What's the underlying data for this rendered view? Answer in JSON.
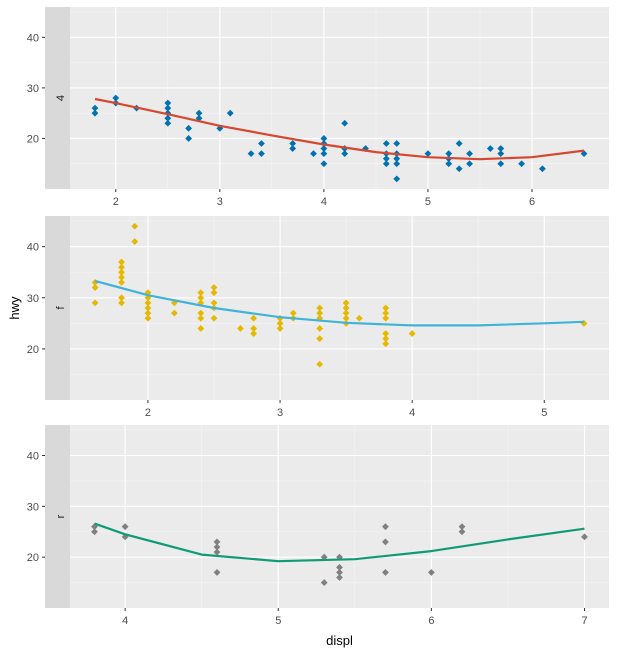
{
  "chart_data": {
    "type": "scatter",
    "xlabel": "displ",
    "ylabel": "hwy",
    "grid": true,
    "legend": "none",
    "panel_background": "#ebebeb",
    "strip_background": "#d9d9d9",
    "y_ticks": [
      20,
      30,
      40
    ],
    "ylim": [
      10,
      46
    ],
    "panels": [
      {
        "strip": "4",
        "xlim": [
          1.56,
          6.74
        ],
        "x_ticks": [
          2,
          3,
          4,
          5,
          6
        ],
        "point_color": "#0072b2",
        "smooth_color": "#d7472f",
        "points": [
          [
            1.8,
            25
          ],
          [
            1.8,
            26
          ],
          [
            2,
            28
          ],
          [
            2,
            27
          ],
          [
            2.2,
            26
          ],
          [
            2.5,
            27
          ],
          [
            2.5,
            26
          ],
          [
            2.5,
            25
          ],
          [
            2.5,
            24
          ],
          [
            2.5,
            23
          ],
          [
            2.7,
            22
          ],
          [
            2.7,
            20
          ],
          [
            2.8,
            25
          ],
          [
            2.8,
            24
          ],
          [
            3,
            22
          ],
          [
            3.1,
            25
          ],
          [
            3.3,
            17
          ],
          [
            3.4,
            17
          ],
          [
            3.4,
            19
          ],
          [
            3.7,
            19
          ],
          [
            3.7,
            18
          ],
          [
            3.9,
            17
          ],
          [
            4,
            20
          ],
          [
            4,
            19
          ],
          [
            4,
            18
          ],
          [
            4,
            17
          ],
          [
            4,
            15
          ],
          [
            4.2,
            23
          ],
          [
            4.2,
            18
          ],
          [
            4.2,
            17
          ],
          [
            4.4,
            18
          ],
          [
            4.6,
            19
          ],
          [
            4.6,
            17
          ],
          [
            4.6,
            16
          ],
          [
            4.6,
            15
          ],
          [
            4.7,
            19
          ],
          [
            4.7,
            17
          ],
          [
            4.7,
            16
          ],
          [
            4.7,
            15
          ],
          [
            4.7,
            12
          ],
          [
            5,
            17
          ],
          [
            5.2,
            17
          ],
          [
            5.2,
            16
          ],
          [
            5.2,
            15
          ],
          [
            5.3,
            14
          ],
          [
            5.3,
            19
          ],
          [
            5.4,
            17
          ],
          [
            5.4,
            15
          ],
          [
            5.6,
            18
          ],
          [
            5.7,
            18
          ],
          [
            5.7,
            17
          ],
          [
            5.7,
            15
          ],
          [
            5.9,
            15
          ],
          [
            6.1,
            14
          ],
          [
            6.5,
            17
          ]
        ],
        "smooth": [
          [
            1.8,
            27.8
          ],
          [
            2,
            27
          ],
          [
            2.5,
            24.8
          ],
          [
            3,
            22.5
          ],
          [
            3.5,
            20.6
          ],
          [
            4,
            18.8
          ],
          [
            4.5,
            17.3
          ],
          [
            5,
            16.3
          ],
          [
            5.5,
            15.9
          ],
          [
            6,
            16.3
          ],
          [
            6.5,
            17.6
          ]
        ]
      },
      {
        "strip": "f",
        "xlim": [
          1.41,
          5.49
        ],
        "x_ticks": [
          2,
          3,
          4,
          5
        ],
        "point_color": "#e6b800",
        "smooth_color": "#3fb3d8",
        "points": [
          [
            1.6,
            29
          ],
          [
            1.6,
            32
          ],
          [
            1.6,
            33
          ],
          [
            1.8,
            29
          ],
          [
            1.8,
            30
          ],
          [
            1.8,
            33
          ],
          [
            1.8,
            34
          ],
          [
            1.8,
            35
          ],
          [
            1.8,
            36
          ],
          [
            1.8,
            37
          ],
          [
            1.9,
            41
          ],
          [
            1.9,
            44
          ],
          [
            2,
            26
          ],
          [
            2,
            27
          ],
          [
            2,
            28
          ],
          [
            2,
            29
          ],
          [
            2,
            30
          ],
          [
            2,
            31
          ],
          [
            2.2,
            27
          ],
          [
            2.2,
            29
          ],
          [
            2.4,
            24
          ],
          [
            2.4,
            26
          ],
          [
            2.4,
            27
          ],
          [
            2.4,
            29
          ],
          [
            2.4,
            30
          ],
          [
            2.4,
            31
          ],
          [
            2.5,
            26
          ],
          [
            2.5,
            28
          ],
          [
            2.5,
            29
          ],
          [
            2.5,
            31
          ],
          [
            2.5,
            32
          ],
          [
            2.7,
            24
          ],
          [
            2.8,
            23
          ],
          [
            2.8,
            24
          ],
          [
            2.8,
            26
          ],
          [
            3,
            24
          ],
          [
            3,
            25
          ],
          [
            3,
            26
          ],
          [
            3.1,
            26
          ],
          [
            3.1,
            27
          ],
          [
            3.3,
            17
          ],
          [
            3.3,
            22
          ],
          [
            3.3,
            24
          ],
          [
            3.3,
            26
          ],
          [
            3.3,
            27
          ],
          [
            3.3,
            28
          ],
          [
            3.5,
            25
          ],
          [
            3.5,
            26
          ],
          [
            3.5,
            27
          ],
          [
            3.5,
            28
          ],
          [
            3.5,
            29
          ],
          [
            3.6,
            26
          ],
          [
            3.8,
            21
          ],
          [
            3.8,
            22
          ],
          [
            3.8,
            23
          ],
          [
            3.8,
            26
          ],
          [
            3.8,
            27
          ],
          [
            3.8,
            28
          ],
          [
            4,
            23
          ],
          [
            5.3,
            25
          ]
        ],
        "smooth": [
          [
            1.6,
            33.3
          ],
          [
            2,
            30.5
          ],
          [
            2.5,
            28
          ],
          [
            3,
            26.2
          ],
          [
            3.5,
            25.1
          ],
          [
            4,
            24.6
          ],
          [
            4.5,
            24.6
          ],
          [
            5,
            25
          ],
          [
            5.3,
            25.3
          ]
        ]
      },
      {
        "strip": "r",
        "xlim": [
          3.64,
          7.16
        ],
        "x_ticks": [
          4,
          5,
          6,
          7
        ],
        "point_color": "#808080",
        "smooth_color": "#0f9b74",
        "points": [
          [
            3.8,
            25
          ],
          [
            3.8,
            26
          ],
          [
            4,
            24
          ],
          [
            4,
            26
          ],
          [
            4.6,
            17
          ],
          [
            4.6,
            21
          ],
          [
            4.6,
            22
          ],
          [
            4.6,
            23
          ],
          [
            5.3,
            15
          ],
          [
            5.3,
            20
          ],
          [
            5.4,
            16
          ],
          [
            5.4,
            17
          ],
          [
            5.4,
            18
          ],
          [
            5.4,
            20
          ],
          [
            5.7,
            17
          ],
          [
            5.7,
            23
          ],
          [
            5.7,
            26
          ],
          [
            6,
            17
          ],
          [
            6.2,
            25
          ],
          [
            6.2,
            26
          ],
          [
            7,
            24
          ]
        ],
        "smooth": [
          [
            3.8,
            26.6
          ],
          [
            4,
            24.5
          ],
          [
            4.5,
            20.5
          ],
          [
            5,
            19.2
          ],
          [
            5.5,
            19.6
          ],
          [
            6,
            21.2
          ],
          [
            6.5,
            23.5
          ],
          [
            7,
            25.6
          ]
        ]
      }
    ]
  }
}
